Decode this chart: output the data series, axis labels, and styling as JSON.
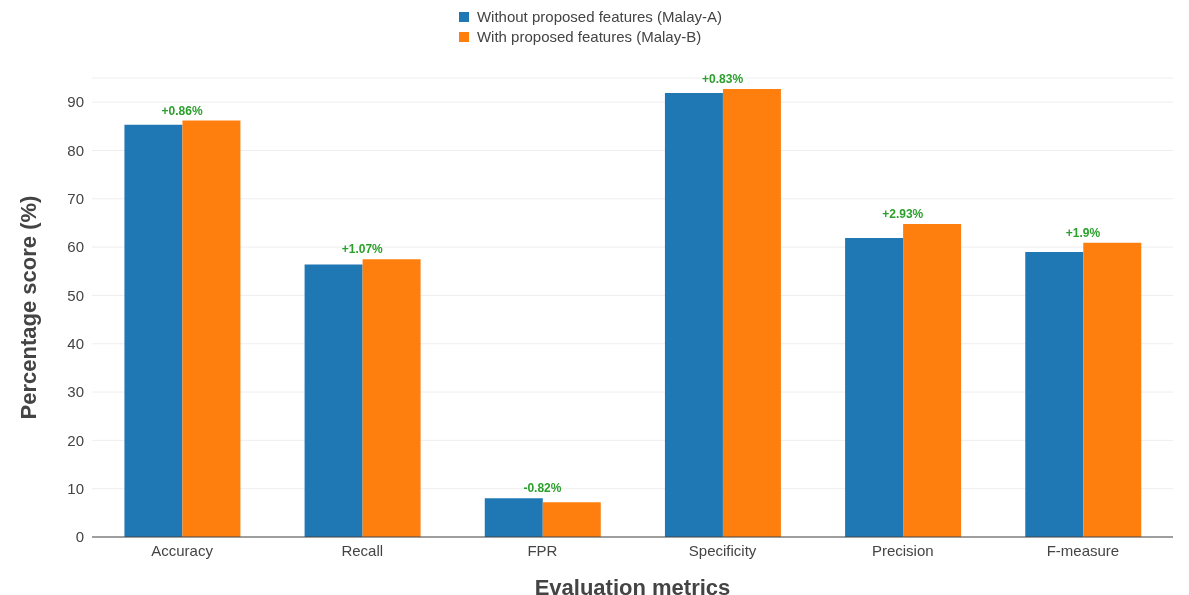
{
  "chart_data": {
    "type": "bar",
    "xlabel": "Evaluation metrics",
    "ylabel": "Percentage score (%)",
    "categories": [
      "Accuracy",
      "Recall",
      "FPR",
      "Specificity",
      "Precision",
      "F-measure"
    ],
    "series": [
      {
        "name": "Without proposed features (Malay-A)",
        "color": "#1f77b4",
        "values": [
          85.3,
          56.4,
          8.0,
          91.9,
          61.9,
          59.0
        ]
      },
      {
        "name": "With proposed features (Malay-B)",
        "color": "#ff7f0e",
        "values": [
          86.2,
          57.5,
          7.2,
          92.7,
          64.8,
          60.9
        ]
      }
    ],
    "ylim": [
      0,
      95
    ],
    "yticks": [
      0,
      10,
      20,
      30,
      40,
      50,
      60,
      70,
      80,
      90
    ],
    "grid": "y",
    "legend": "top",
    "annotations": [
      {
        "text": "+0.86%",
        "x": "Accuracy",
        "y": 86.2
      },
      {
        "text": "+1.07%",
        "x": "Recall",
        "y": 57.5
      },
      {
        "text": "-0.82%",
        "x": "FPR",
        "y": 8.0
      },
      {
        "text": "+0.83%",
        "x": "Specificity",
        "y": 92.7
      },
      {
        "text": "+2.93%",
        "x": "Precision",
        "y": 64.8
      },
      {
        "text": "+1.9%",
        "x": "F-measure",
        "y": 60.9
      }
    ]
  }
}
